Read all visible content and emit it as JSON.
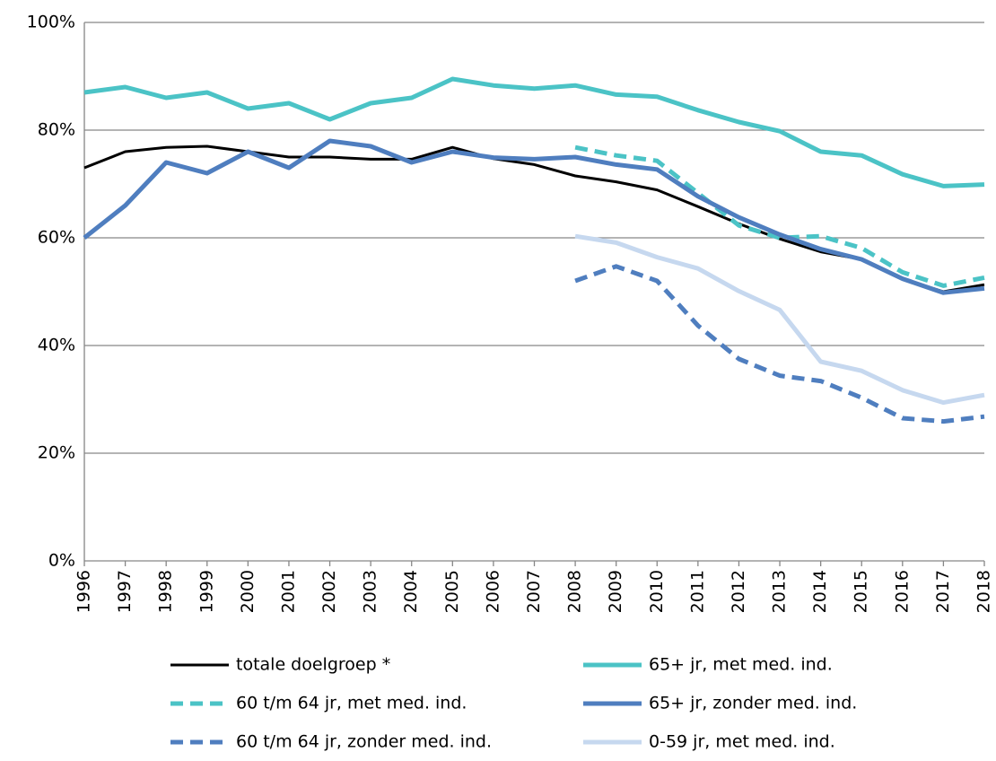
{
  "chart_data": {
    "type": "line",
    "categories": [
      "1996",
      "1997",
      "1998",
      "1999",
      "2000",
      "2001",
      "2002",
      "2003",
      "2004",
      "2005",
      "2006",
      "2007",
      "2008",
      "2009",
      "2010",
      "2011",
      "2012",
      "2013",
      "2014",
      "2015",
      "2016",
      "2017",
      "2018"
    ],
    "ylim": [
      0,
      100
    ],
    "yticks": [
      {
        "value": 0,
        "label": "0%"
      },
      {
        "value": 20,
        "label": "20%"
      },
      {
        "value": 40,
        "label": "40%"
      },
      {
        "value": 60,
        "label": "60%"
      },
      {
        "value": 80,
        "label": "80%"
      },
      {
        "value": 100,
        "label": "100%"
      }
    ],
    "grid": true,
    "series": [
      {
        "name": "totale doelgroep *",
        "color": "#000000",
        "dash": false,
        "line_width": 3,
        "values": [
          73,
          76,
          76.8,
          77,
          76,
          75,
          75,
          74.6,
          74.6,
          76.8,
          74.7,
          73.6,
          71.5,
          70.4,
          68.9,
          65.8,
          62.6,
          59.8,
          57.4,
          56,
          52.4,
          50,
          51.3
        ]
      },
      {
        "name": "65+ jr, met med. ind.",
        "color": "#4bc3c6",
        "dash": false,
        "line_width": 5,
        "values": [
          87,
          88,
          86,
          87,
          84,
          85,
          82,
          85,
          86,
          89.5,
          88.3,
          87.7,
          88.3,
          86.6,
          86.2,
          83.7,
          81.5,
          79.8,
          76,
          75.3,
          71.8,
          69.6,
          69.9
        ]
      },
      {
        "name": "60 t/m 64 jr, met med. ind.",
        "color": "#4bc3c6",
        "dash": true,
        "line_width": 5,
        "values": [
          null,
          null,
          null,
          null,
          null,
          null,
          null,
          null,
          null,
          null,
          null,
          null,
          76.8,
          75.3,
          74.3,
          68.3,
          62.3,
          60,
          60.3,
          58.1,
          53.6,
          51.1,
          52.6
        ]
      },
      {
        "name": "65+ jr, zonder med. ind.",
        "color": "#4f7ebf",
        "dash": false,
        "line_width": 5,
        "values": [
          60,
          66,
          74,
          72,
          76,
          73,
          78,
          77,
          74,
          76,
          74.9,
          74.6,
          75,
          73.6,
          72.7,
          67.7,
          63.8,
          60.6,
          57.9,
          56,
          52.4,
          49.8,
          50.6
        ]
      },
      {
        "name": "60 t/m 64 jr, zonder med. ind.",
        "color": "#4f7ebf",
        "dash": true,
        "line_width": 5,
        "values": [
          null,
          null,
          null,
          null,
          null,
          null,
          null,
          null,
          null,
          null,
          null,
          null,
          52,
          54.7,
          52,
          43.7,
          37.5,
          34.4,
          33.4,
          30.3,
          26.5,
          25.9,
          26.8
        ]
      },
      {
        "name": "0-59 jr, met med. ind.",
        "color": "#c6d8ef",
        "dash": false,
        "line_width": 5,
        "values": [
          null,
          null,
          null,
          null,
          null,
          null,
          null,
          null,
          null,
          null,
          null,
          null,
          60.3,
          59.1,
          56.4,
          54.3,
          50.1,
          46.6,
          37,
          35.3,
          31.7,
          29.4,
          30.8
        ]
      }
    ]
  }
}
